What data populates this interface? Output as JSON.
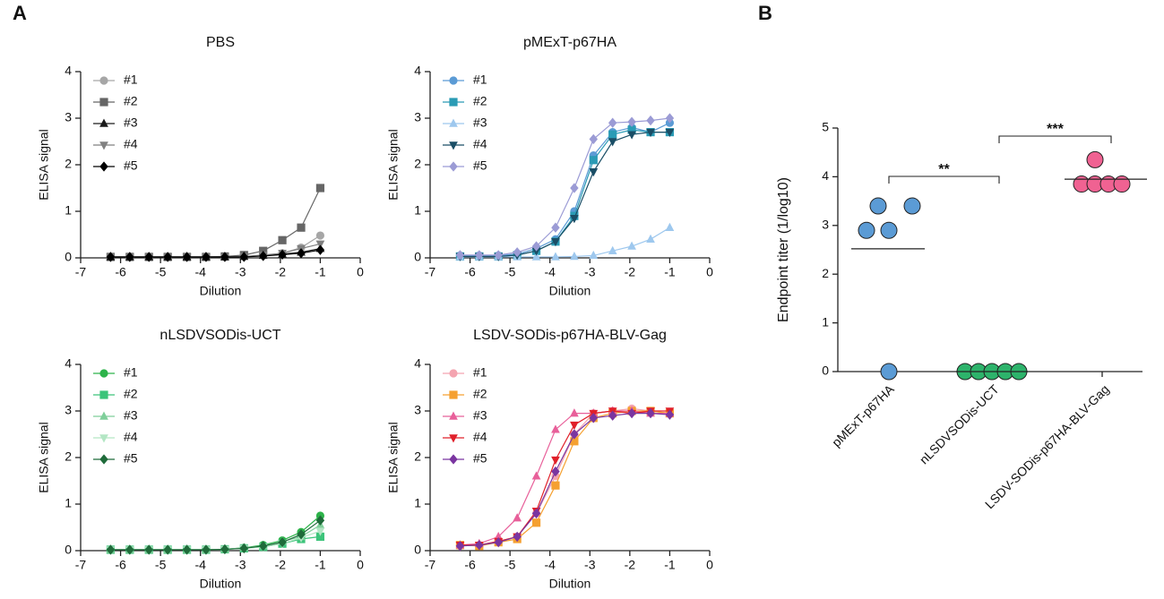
{
  "panel_labels": [
    "A",
    "B"
  ],
  "chart_data": [
    {
      "type": "line",
      "title": "PBS",
      "xlabel": "Dilution",
      "ylabel": "ELISA signal",
      "x": [
        -6.25,
        -5.77,
        -5.29,
        -4.82,
        -4.34,
        -3.86,
        -3.39,
        -2.91,
        -2.43,
        -1.95,
        -1.48,
        -1
      ],
      "xlim": [
        -7,
        0
      ],
      "xticks": [
        -7,
        -6,
        -5,
        -4,
        -3,
        -2,
        -1,
        0
      ],
      "ylim": [
        0,
        4
      ],
      "yticks": [
        0,
        1,
        2,
        3,
        4
      ],
      "legend": "upper left",
      "series": [
        {
          "name": "#1",
          "color": "#a6a6a6",
          "marker": "circle",
          "values": [
            0.02,
            0.02,
            0.02,
            0.02,
            0.02,
            0.02,
            0.02,
            0.03,
            0.05,
            0.1,
            0.22,
            0.48
          ]
        },
        {
          "name": "#2",
          "color": "#666666",
          "marker": "square",
          "values": [
            0.02,
            0.02,
            0.02,
            0.02,
            0.02,
            0.02,
            0.03,
            0.06,
            0.15,
            0.38,
            0.65,
            1.5
          ]
        },
        {
          "name": "#3",
          "color": "#1a1a1a",
          "marker": "triangle",
          "values": [
            0.02,
            0.02,
            0.02,
            0.02,
            0.02,
            0.02,
            0.02,
            0.03,
            0.05,
            0.08,
            0.12,
            0.2
          ]
        },
        {
          "name": "#4",
          "color": "#808080",
          "marker": "triangle-down",
          "values": [
            0.02,
            0.02,
            0.02,
            0.02,
            0.02,
            0.02,
            0.02,
            0.03,
            0.06,
            0.1,
            0.2,
            0.3
          ]
        },
        {
          "name": "#5",
          "color": "#000000",
          "marker": "diamond",
          "values": [
            0.02,
            0.02,
            0.02,
            0.02,
            0.02,
            0.02,
            0.02,
            0.02,
            0.04,
            0.07,
            0.1,
            0.17
          ]
        }
      ]
    },
    {
      "type": "line",
      "title": "pMExT-p67HA",
      "xlabel": "Dilution",
      "ylabel": "ELISA signal",
      "x": [
        -6.25,
        -5.77,
        -5.29,
        -4.82,
        -4.34,
        -3.86,
        -3.39,
        -2.91,
        -2.43,
        -1.95,
        -1.48,
        -1
      ],
      "xlim": [
        -7,
        0
      ],
      "xticks": [
        -7,
        -6,
        -5,
        -4,
        -3,
        -2,
        -1,
        0
      ],
      "ylim": [
        0,
        4
      ],
      "yticks": [
        0,
        1,
        2,
        3,
        4
      ],
      "legend": "upper left",
      "series": [
        {
          "name": "#1",
          "color": "#5b9bd5",
          "marker": "circle",
          "values": [
            0.05,
            0.05,
            0.05,
            0.08,
            0.2,
            0.4,
            1.0,
            2.2,
            2.7,
            2.8,
            2.7,
            2.9
          ]
        },
        {
          "name": "#2",
          "color": "#2a9bb5",
          "marker": "square",
          "values": [
            0.03,
            0.03,
            0.03,
            0.06,
            0.15,
            0.35,
            0.9,
            2.1,
            2.65,
            2.75,
            2.7,
            2.7
          ]
        },
        {
          "name": "#3",
          "color": "#9ec8ee",
          "marker": "triangle",
          "values": [
            0.02,
            0.02,
            0.02,
            0.02,
            0.02,
            0.02,
            0.03,
            0.05,
            0.15,
            0.25,
            0.4,
            0.65
          ]
        },
        {
          "name": "#4",
          "color": "#1a4e66",
          "marker": "triangle-down",
          "values": [
            0.03,
            0.03,
            0.03,
            0.06,
            0.15,
            0.35,
            0.85,
            1.85,
            2.5,
            2.65,
            2.7,
            2.7
          ]
        },
        {
          "name": "#5",
          "color": "#9b9bd5",
          "marker": "diamond",
          "values": [
            0.06,
            0.06,
            0.06,
            0.12,
            0.25,
            0.65,
            1.5,
            2.55,
            2.9,
            2.92,
            2.95,
            3.0
          ]
        }
      ]
    },
    {
      "type": "line",
      "title": "nLSDVSODis-UCT",
      "xlabel": "Dilution",
      "ylabel": "ELISA signal",
      "x": [
        -6.25,
        -5.77,
        -5.29,
        -4.82,
        -4.34,
        -3.86,
        -3.39,
        -2.91,
        -2.43,
        -1.95,
        -1.48,
        -1
      ],
      "xlim": [
        -7,
        0
      ],
      "xticks": [
        -7,
        -6,
        -5,
        -4,
        -3,
        -2,
        -1,
        0
      ],
      "ylim": [
        0,
        4
      ],
      "yticks": [
        0,
        1,
        2,
        3,
        4
      ],
      "legend": "upper left",
      "series": [
        {
          "name": "#1",
          "color": "#2db34a",
          "marker": "circle",
          "values": [
            0.02,
            0.02,
            0.02,
            0.02,
            0.02,
            0.02,
            0.03,
            0.06,
            0.12,
            0.22,
            0.4,
            0.75
          ]
        },
        {
          "name": "#2",
          "color": "#3cc47a",
          "marker": "square",
          "values": [
            0.02,
            0.02,
            0.02,
            0.02,
            0.02,
            0.02,
            0.03,
            0.05,
            0.08,
            0.15,
            0.25,
            0.3
          ]
        },
        {
          "name": "#3",
          "color": "#7fcf9a",
          "marker": "triangle",
          "values": [
            0.02,
            0.02,
            0.02,
            0.02,
            0.02,
            0.02,
            0.03,
            0.06,
            0.1,
            0.2,
            0.3,
            0.55
          ]
        },
        {
          "name": "#4",
          "color": "#b3e6c4",
          "marker": "triangle-down",
          "values": [
            0.02,
            0.02,
            0.02,
            0.02,
            0.02,
            0.02,
            0.03,
            0.05,
            0.08,
            0.15,
            0.28,
            0.42
          ]
        },
        {
          "name": "#5",
          "color": "#1f6b3a",
          "marker": "diamond",
          "values": [
            0.02,
            0.02,
            0.02,
            0.02,
            0.02,
            0.02,
            0.03,
            0.05,
            0.1,
            0.18,
            0.35,
            0.65
          ]
        }
      ]
    },
    {
      "type": "line",
      "title": "LSDV-SODis-p67HA-BLV-Gag",
      "xlabel": "Dilution",
      "ylabel": "ELISA signal",
      "x": [
        -6.25,
        -5.77,
        -5.29,
        -4.82,
        -4.34,
        -3.86,
        -3.39,
        -2.91,
        -2.43,
        -1.95,
        -1.48,
        -1
      ],
      "xlim": [
        -7,
        0
      ],
      "xticks": [
        -7,
        -6,
        -5,
        -4,
        -3,
        -2,
        -1,
        0
      ],
      "ylim": [
        0,
        4
      ],
      "yticks": [
        0,
        1,
        2,
        3,
        4
      ],
      "legend": "upper left",
      "series": [
        {
          "name": "#1",
          "color": "#f4a4b0",
          "marker": "circle",
          "values": [
            0.1,
            0.12,
            0.2,
            0.3,
            0.8,
            1.6,
            2.5,
            2.95,
            3.0,
            3.05,
            3.0,
            2.95
          ]
        },
        {
          "name": "#2",
          "color": "#f5a030",
          "marker": "square",
          "values": [
            0.12,
            0.1,
            0.18,
            0.25,
            0.6,
            1.4,
            2.35,
            2.85,
            2.95,
            3.0,
            3.0,
            2.95
          ]
        },
        {
          "name": "#3",
          "color": "#e8609a",
          "marker": "triangle",
          "values": [
            0.12,
            0.15,
            0.3,
            0.7,
            1.6,
            2.6,
            2.95,
            2.95,
            3.0,
            3.0,
            2.95,
            2.95
          ]
        },
        {
          "name": "#4",
          "color": "#e0202a",
          "marker": "triangle-down",
          "values": [
            0.12,
            0.12,
            0.2,
            0.3,
            0.85,
            1.95,
            2.7,
            2.95,
            3.0,
            2.95,
            3.0,
            3.0
          ]
        },
        {
          "name": "#5",
          "color": "#7a35a0",
          "marker": "diamond",
          "values": [
            0.1,
            0.12,
            0.18,
            0.3,
            0.8,
            1.7,
            2.5,
            2.85,
            2.9,
            2.95,
            2.95,
            2.92
          ]
        }
      ]
    },
    {
      "type": "dot",
      "ylabel": "Endpoint titer (1/log10)",
      "categories": [
        "pMExT-p67HA",
        "nLSDVSODis-UCT",
        "LSDV-SODis-p67HA-BLV-Gag"
      ],
      "colors": [
        "#5b9bd5",
        "#2db36b",
        "#f06292"
      ],
      "values": [
        [
          2.9,
          3.4,
          2.9,
          3.4,
          0
        ],
        [
          0,
          0,
          0,
          0,
          0
        ],
        [
          4.35,
          3.85,
          3.85,
          3.85,
          3.85
        ]
      ],
      "means": [
        2.52,
        0,
        3.95
      ],
      "ylim": [
        0,
        5
      ],
      "yticks": [
        0,
        1,
        2,
        3,
        4,
        5
      ],
      "annotations": [
        "**",
        "***"
      ]
    }
  ]
}
